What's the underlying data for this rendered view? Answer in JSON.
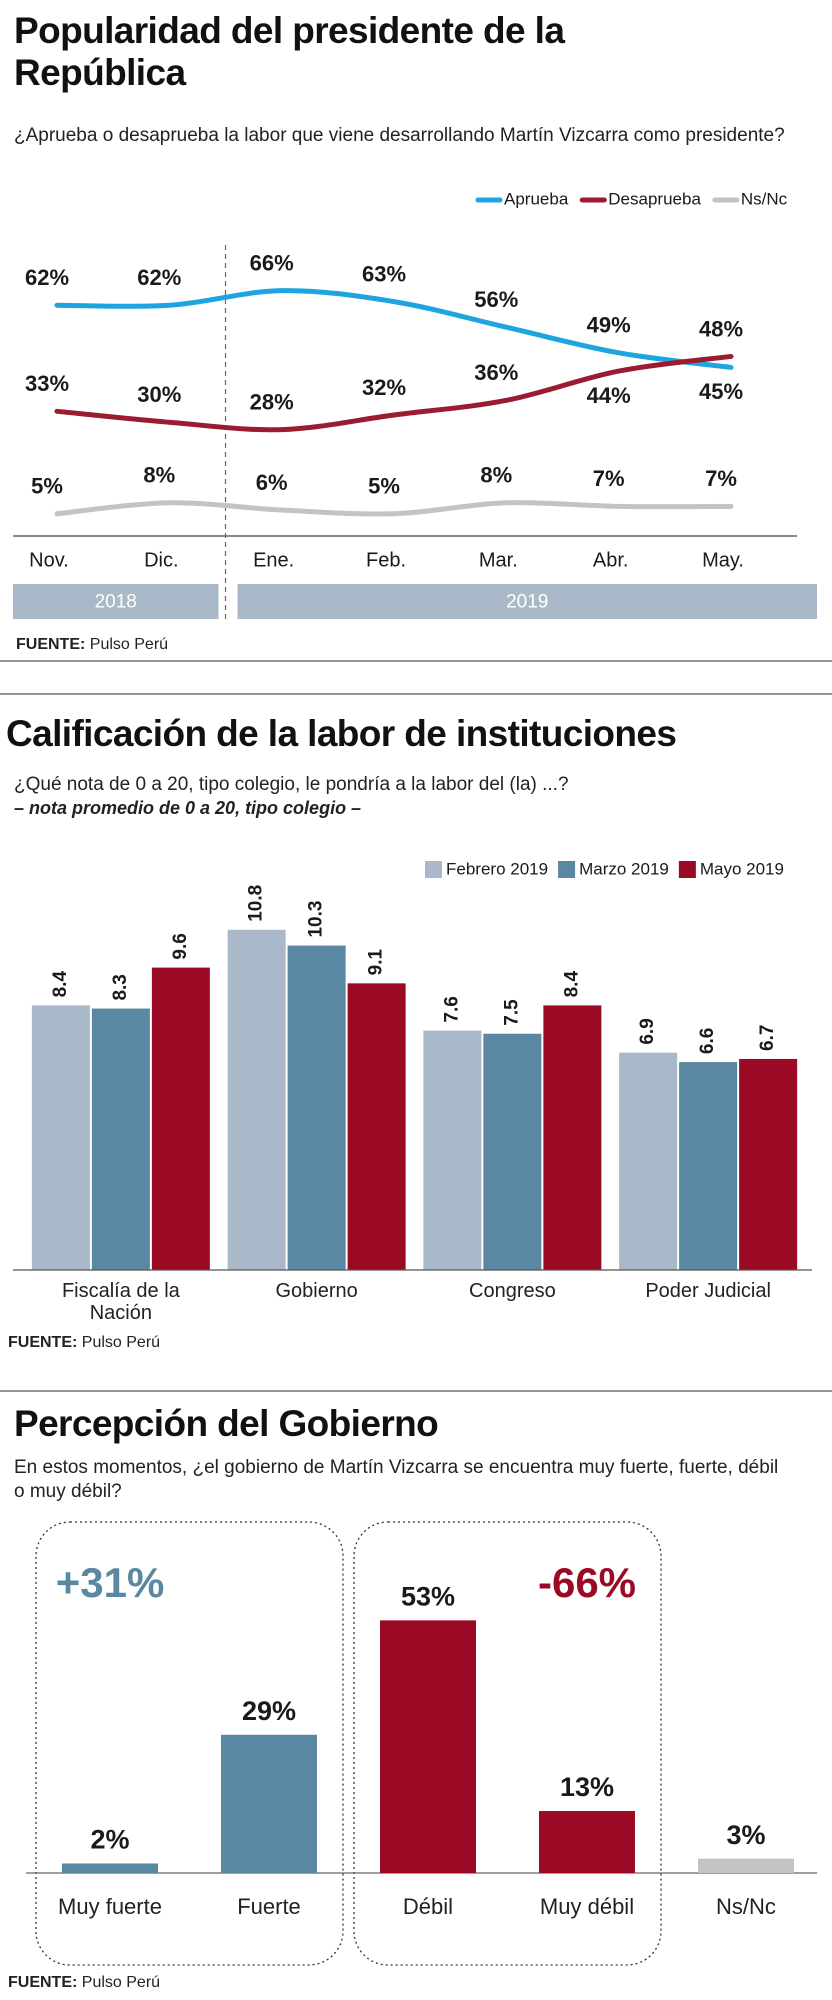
{
  "chart_data": [
    {
      "type": "line",
      "title": "Popularidad del presidente de la República",
      "subtitle": "¿Aprueba o desaprueba la labor que viene desarrollando Martín Vizcarra como presidente?",
      "categories": [
        "Nov.",
        "Dic.",
        "Ene.",
        "Feb.",
        "Mar.",
        "Abr.",
        "May."
      ],
      "years": [
        "2018",
        "2018",
        "2019",
        "2019",
        "2019",
        "2019",
        "2019"
      ],
      "series": [
        {
          "name": "Aprueba",
          "color": "#1ea5e0",
          "values": [
            62,
            62,
            66,
            63,
            56,
            49,
            45
          ],
          "value_labels": [
            "62%",
            "62%",
            "66%",
            "63%",
            "56%",
            "49%",
            "45%"
          ]
        },
        {
          "name": "Desaprueba",
          "color": "#9b1b30",
          "values": [
            33,
            30,
            28,
            32,
            36,
            44,
            48
          ],
          "value_labels": [
            "33%",
            "30%",
            "28%",
            "32%",
            "36%",
            "44%",
            "48%"
          ]
        },
        {
          "name": "Ns/Nc",
          "color": "#c3c3c6",
          "values": [
            5,
            8,
            6,
            5,
            8,
            7,
            7
          ],
          "value_labels": [
            "5%",
            "8%",
            "6%",
            "5%",
            "8%",
            "7%",
            "7%"
          ]
        }
      ],
      "ylim": [
        0,
        70
      ],
      "legend": "top-right",
      "source_label": "FUENTE:",
      "source": "Pulso Perú"
    },
    {
      "type": "bar",
      "title": "Calificación de la labor de instituciones",
      "subtitle": "¿Qué nota de 0 a 20, tipo colegio, le pondría a la labor del (la) ...?",
      "note": "– nota promedio de 0 a 20, tipo colegio –",
      "categories": [
        "Fiscalía de la Nación",
        "Gobierno",
        "Congreso",
        "Poder Judicial"
      ],
      "series": [
        {
          "name": "Febrero 2019",
          "color": "#a9b9c9",
          "values": [
            8.4,
            10.8,
            7.6,
            6.9
          ]
        },
        {
          "name": "Marzo 2019",
          "color": "#5a87a1",
          "values": [
            8.3,
            10.3,
            7.5,
            6.6
          ]
        },
        {
          "name": "Mayo 2019",
          "color": "#9b0a24",
          "values": [
            9.6,
            9.1,
            8.4,
            6.7
          ]
        }
      ],
      "ylim": [
        0,
        12
      ],
      "legend": "top-right",
      "source_label": "FUENTE:",
      "source": "Pulso Perú"
    },
    {
      "type": "bar",
      "title": "Percepción del Gobierno",
      "subtitle": "En estos momentos, ¿el gobierno de Martín Vizcarra se encuentra muy fuerte, fuerte, débil o muy débil?",
      "categories": [
        "Muy fuerte",
        "Fuerte",
        "Débil",
        "Muy débil",
        "Ns/Nc"
      ],
      "values": [
        2,
        29,
        53,
        13,
        3
      ],
      "value_labels": [
        "2%",
        "29%",
        "53%",
        "13%",
        "3%"
      ],
      "colors": [
        "#5a87a1",
        "#5a87a1",
        "#9b0a24",
        "#9b0a24",
        "#c3c3c6"
      ],
      "groups": [
        {
          "label": "+31%",
          "color": "#5a87a1",
          "categories": [
            "Muy fuerte",
            "Fuerte"
          ]
        },
        {
          "label": "-66%",
          "color": "#9b0a24",
          "categories": [
            "Débil",
            "Muy débil"
          ]
        }
      ],
      "ylim": [
        0,
        60
      ],
      "source_label": "FUENTE:",
      "source": "Pulso Perú"
    }
  ]
}
